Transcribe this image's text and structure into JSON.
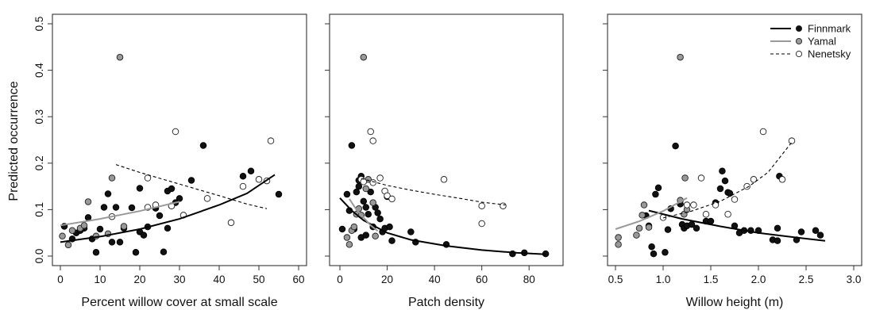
{
  "figure": {
    "ylabel": "Predicted occurrence"
  },
  "legend": {
    "placement": "top-right",
    "entries": [
      {
        "name": "Finnmark",
        "line": "solid-black",
        "marker": "filled-black"
      },
      {
        "name": "Yamal",
        "line": "solid-gray",
        "marker": "filled-gray"
      },
      {
        "name": "Nenetsky",
        "line": "dashed-black",
        "marker": "open"
      }
    ]
  },
  "colors": {
    "finnmark_marker": "#111111",
    "yamal_marker": "#999999",
    "yamal_line": "#999999",
    "nenetsky_marker": "#ffffff",
    "axis": "#333333"
  },
  "chart_data": [
    {
      "type": "scatter",
      "xlabel": "Percent willow cover at small scale",
      "ylabel": "Predicted occurrence",
      "xlim": [
        0,
        60
      ],
      "ylim": [
        0,
        0.5
      ],
      "xticks": [
        0,
        10,
        20,
        30,
        40,
        50,
        60
      ],
      "yticks": [
        0.0,
        0.1,
        0.2,
        0.3,
        0.4,
        0.5
      ],
      "show_ylabels": true,
      "series": [
        {
          "name": "Finnmark",
          "style": "filled-black",
          "points": [
            [
              1,
              0.064
            ],
            [
              3,
              0.037
            ],
            [
              4,
              0.05
            ],
            [
              5,
              0.055
            ],
            [
              6,
              0.06
            ],
            [
              7,
              0.083
            ],
            [
              8,
              0.037
            ],
            [
              9,
              0.008
            ],
            [
              10,
              0.058
            ],
            [
              11,
              0.105
            ],
            [
              12,
              0.134
            ],
            [
              13,
              0.03
            ],
            [
              14,
              0.105
            ],
            [
              15,
              0.03
            ],
            [
              16,
              0.06
            ],
            [
              18,
              0.104
            ],
            [
              19,
              0.008
            ],
            [
              20,
              0.146
            ],
            [
              20,
              0.052
            ],
            [
              21,
              0.045
            ],
            [
              22,
              0.063
            ],
            [
              24,
              0.103
            ],
            [
              25,
              0.087
            ],
            [
              26,
              0.009
            ],
            [
              27,
              0.14
            ],
            [
              28,
              0.145
            ],
            [
              29,
              0.115
            ],
            [
              30,
              0.124
            ],
            [
              33,
              0.163
            ],
            [
              36,
              0.238
            ],
            [
              46,
              0.172
            ],
            [
              48,
              0.183
            ],
            [
              55,
              0.133
            ],
            [
              27,
              0.06
            ]
          ],
          "fit": {
            "style": "solid-black",
            "points": [
              [
                0,
                0.03
              ],
              [
                10,
                0.042
              ],
              [
                20,
                0.058
              ],
              [
                30,
                0.08
              ],
              [
                40,
                0.11
              ],
              [
                47,
                0.135
              ],
              [
                54,
                0.175
              ]
            ]
          }
        },
        {
          "name": "Yamal",
          "style": "filled-gray",
          "points": [
            [
              0.5,
              0.043
            ],
            [
              2,
              0.024
            ],
            [
              3,
              0.055
            ],
            [
              5,
              0.06
            ],
            [
              6,
              0.066
            ],
            [
              7,
              0.117
            ],
            [
              9,
              0.043
            ],
            [
              12,
              0.048
            ],
            [
              13,
              0.168
            ],
            [
              15,
              0.428
            ],
            [
              16,
              0.064
            ],
            [
              28,
              0.108
            ]
          ],
          "fit": {
            "style": "solid-gray",
            "points": [
              [
                0,
                0.066
              ],
              [
                10,
                0.08
              ],
              [
                20,
                0.097
              ],
              [
                30,
                0.117
              ]
            ]
          }
        },
        {
          "name": "Nenetsky",
          "style": "open",
          "points": [
            [
              13,
              0.085
            ],
            [
              22,
              0.168
            ],
            [
              22,
              0.105
            ],
            [
              24,
              0.11
            ],
            [
              28,
              0.108
            ],
            [
              29,
              0.268
            ],
            [
              31,
              0.088
            ],
            [
              37,
              0.124
            ],
            [
              43,
              0.072
            ],
            [
              46,
              0.15
            ],
            [
              50,
              0.165
            ],
            [
              52,
              0.162
            ],
            [
              53,
              0.248
            ]
          ],
          "fit": {
            "style": "dashed-black",
            "points": [
              [
                14,
                0.197
              ],
              [
                20,
                0.18
              ],
              [
                30,
                0.155
              ],
              [
                40,
                0.13
              ],
              [
                47,
                0.112
              ],
              [
                52,
                0.102
              ]
            ]
          }
        }
      ]
    },
    {
      "type": "scatter",
      "xlabel": "Patch density",
      "ylabel": "",
      "xlim": [
        0,
        90
      ],
      "ylim": [
        0,
        0.5
      ],
      "xticks": [
        0,
        20,
        40,
        60,
        80
      ],
      "yticks": [
        0.0,
        0.1,
        0.2,
        0.3,
        0.4,
        0.5
      ],
      "show_ylabels": false,
      "series": [
        {
          "name": "Finnmark",
          "style": "filled-black",
          "points": [
            [
              1,
              0.058
            ],
            [
              3,
              0.133
            ],
            [
              4,
              0.098
            ],
            [
              5,
              0.238
            ],
            [
              6,
              0.058
            ],
            [
              7,
              0.138
            ],
            [
              8,
              0.163
            ],
            [
              8,
              0.15
            ],
            [
              9,
              0.172
            ],
            [
              9,
              0.04
            ],
            [
              10,
              0.118
            ],
            [
              11,
              0.105
            ],
            [
              12,
              0.09
            ],
            [
              13,
              0.138
            ],
            [
              14,
              0.063
            ],
            [
              15,
              0.105
            ],
            [
              16,
              0.093
            ],
            [
              17,
              0.08
            ],
            [
              18,
              0.052
            ],
            [
              19,
              0.06
            ],
            [
              20,
              0.128
            ],
            [
              21,
              0.063
            ],
            [
              22,
              0.033
            ],
            [
              30,
              0.052
            ],
            [
              32,
              0.03
            ],
            [
              45,
              0.025
            ],
            [
              73,
              0.005
            ],
            [
              78,
              0.007
            ],
            [
              87,
              0.005
            ],
            [
              11,
              0.045
            ]
          ],
          "fit": {
            "style": "solid-black",
            "points": [
              [
                0,
                0.125
              ],
              [
                5,
                0.098
              ],
              [
                10,
                0.077
              ],
              [
                20,
                0.05
              ],
              [
                30,
                0.035
              ],
              [
                45,
                0.022
              ],
              [
                60,
                0.013
              ],
              [
                75,
                0.007
              ],
              [
                87,
                0.004
              ]
            ]
          }
        },
        {
          "name": "Yamal",
          "style": "filled-gray",
          "points": [
            [
              3,
              0.04
            ],
            [
              4,
              0.025
            ],
            [
              5,
              0.055
            ],
            [
              6,
              0.063
            ],
            [
              7,
              0.09
            ],
            [
              8,
              0.102
            ],
            [
              9,
              0.088
            ],
            [
              10,
              0.428
            ],
            [
              11,
              0.145
            ],
            [
              12,
              0.165
            ],
            [
              14,
              0.115
            ],
            [
              15,
              0.043
            ]
          ],
          "fit": {
            "style": "solid-gray",
            "points": [
              [
                4,
                0.123
              ],
              [
                7,
                0.1
              ],
              [
                10,
                0.083
              ],
              [
                13,
                0.066
              ],
              [
                16,
                0.054
              ]
            ]
          }
        },
        {
          "name": "Nenetsky",
          "style": "open",
          "points": [
            [
              9,
              0.165
            ],
            [
              10,
              0.16
            ],
            [
              13,
              0.268
            ],
            [
              14,
              0.158
            ],
            [
              14,
              0.248
            ],
            [
              17,
              0.168
            ],
            [
              19,
              0.14
            ],
            [
              20,
              0.13
            ],
            [
              22,
              0.123
            ],
            [
              44,
              0.165
            ],
            [
              60,
              0.108
            ],
            [
              60,
              0.07
            ],
            [
              69,
              0.108
            ]
          ],
          "fit": {
            "style": "dashed-black",
            "points": [
              [
                9,
                0.167
              ],
              [
                20,
                0.152
              ],
              [
                30,
                0.142
              ],
              [
                40,
                0.133
              ],
              [
                50,
                0.125
              ],
              [
                60,
                0.116
              ],
              [
                70,
                0.11
              ]
            ]
          }
        }
      ]
    },
    {
      "type": "scatter",
      "xlabel": "Willow height (m)",
      "ylabel": "",
      "xlim": [
        0.5,
        3.0
      ],
      "ylim": [
        0,
        0.5
      ],
      "xticks": [
        0.5,
        1.0,
        1.5,
        2.0,
        2.5,
        3.0
      ],
      "yticks": [
        0.0,
        0.1,
        0.2,
        0.3,
        0.4,
        0.5
      ],
      "show_ylabels": false,
      "series": [
        {
          "name": "Finnmark",
          "style": "filled-black",
          "points": [
            [
              0.82,
              0.087
            ],
            [
              0.85,
              0.065
            ],
            [
              0.88,
              0.02
            ],
            [
              0.9,
              0.005
            ],
            [
              0.92,
              0.133
            ],
            [
              0.95,
              0.147
            ],
            [
              1.02,
              0.008
            ],
            [
              1.05,
              0.057
            ],
            [
              1.08,
              0.102
            ],
            [
              1.13,
              0.237
            ],
            [
              1.18,
              0.112
            ],
            [
              1.2,
              0.068
            ],
            [
              1.22,
              0.06
            ],
            [
              1.25,
              0.065
            ],
            [
              1.3,
              0.068
            ],
            [
              1.35,
              0.06
            ],
            [
              1.45,
              0.075
            ],
            [
              1.5,
              0.075
            ],
            [
              1.55,
              0.115
            ],
            [
              1.6,
              0.145
            ],
            [
              1.62,
              0.183
            ],
            [
              1.65,
              0.162
            ],
            [
              1.68,
              0.137
            ],
            [
              1.7,
              0.135
            ],
            [
              1.75,
              0.065
            ],
            [
              1.8,
              0.05
            ],
            [
              1.85,
              0.055
            ],
            [
              1.92,
              0.055
            ],
            [
              2.0,
              0.055
            ],
            [
              2.15,
              0.035
            ],
            [
              2.2,
              0.033
            ],
            [
              2.22,
              0.172
            ],
            [
              2.4,
              0.035
            ],
            [
              2.45,
              0.052
            ],
            [
              2.6,
              0.055
            ],
            [
              2.65,
              0.045
            ],
            [
              2.2,
              0.06
            ]
          ],
          "fit": {
            "style": "solid-black",
            "points": [
              [
                0.85,
                0.098
              ],
              [
                1.2,
                0.08
              ],
              [
                1.6,
                0.064
              ],
              [
                2.0,
                0.05
              ],
              [
                2.4,
                0.04
              ],
              [
                2.7,
                0.033
              ]
            ]
          }
        },
        {
          "name": "Yamal",
          "style": "filled-gray",
          "points": [
            [
              0.53,
              0.025
            ],
            [
              0.53,
              0.04
            ],
            [
              0.72,
              0.045
            ],
            [
              0.75,
              0.06
            ],
            [
              0.8,
              0.11
            ],
            [
              0.78,
              0.088
            ],
            [
              0.85,
              0.062
            ],
            [
              1.18,
              0.428
            ],
            [
              1.18,
              0.12
            ],
            [
              1.22,
              0.09
            ],
            [
              1.23,
              0.168
            ],
            [
              1.25,
              0.1
            ]
          ],
          "fit": {
            "style": "solid-gray",
            "points": [
              [
                0.5,
                0.058
              ],
              [
                0.75,
                0.075
              ],
              [
                1.0,
                0.097
              ],
              [
                1.25,
                0.125
              ]
            ]
          }
        },
        {
          "name": "Nenetsky",
          "style": "open",
          "points": [
            [
              1.0,
              0.083
            ],
            [
              1.25,
              0.11
            ],
            [
              1.32,
              0.11
            ],
            [
              1.4,
              0.168
            ],
            [
              1.45,
              0.09
            ],
            [
              1.55,
              0.11
            ],
            [
              1.68,
              0.09
            ],
            [
              1.75,
              0.122
            ],
            [
              1.88,
              0.15
            ],
            [
              1.95,
              0.165
            ],
            [
              2.05,
              0.268
            ],
            [
              2.25,
              0.165
            ],
            [
              2.35,
              0.248
            ]
          ],
          "fit": {
            "style": "dashed-black",
            "points": [
              [
                1.0,
                0.082
              ],
              [
                1.3,
                0.097
              ],
              [
                1.6,
                0.118
              ],
              [
                1.9,
                0.15
              ],
              [
                2.1,
                0.18
              ],
              [
                2.35,
                0.245
              ]
            ]
          }
        }
      ]
    }
  ]
}
